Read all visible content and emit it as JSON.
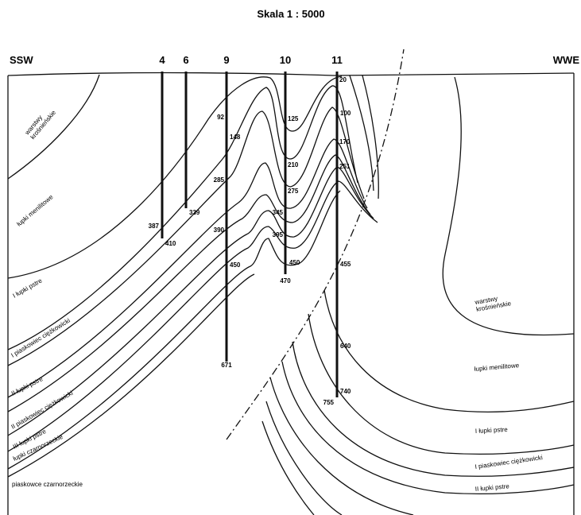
{
  "title": "Skala 1 : 5000",
  "directions": {
    "left": "SSW",
    "right": "WWE"
  },
  "wells": [
    {
      "label": "4",
      "depths": [
        387,
        410
      ]
    },
    {
      "label": "6",
      "depths": [
        339
      ]
    },
    {
      "label": "9",
      "depths": [
        92,
        148,
        285,
        390,
        450,
        671
      ]
    },
    {
      "label": "10",
      "depths": [
        125,
        210,
        275,
        345,
        395,
        450,
        470
      ]
    },
    {
      "label": "11",
      "depths": [
        20,
        100,
        170,
        251,
        455,
        640,
        740,
        755
      ]
    }
  ],
  "layers_left": [
    [
      "warstwy",
      "krośnieńskie"
    ],
    [
      "łupki menilitowe"
    ],
    [
      "I łupki pstre"
    ],
    [
      "I piaskowiec ciężkowicki"
    ],
    [
      "II łupki pstre"
    ],
    [
      "II piaskowiec ciężkowicki"
    ],
    [
      "III łupki pstre"
    ],
    [
      "łupki czarnorzeckie"
    ],
    [
      "piaskowce czarnorzeckie"
    ]
  ],
  "layers_right": [
    [
      "warstwy",
      "krośnieńskie"
    ],
    [
      "łupki menilitowe"
    ],
    [
      "I łupki pstre"
    ],
    [
      "I piaskowiec ciężkowicki"
    ],
    [
      "II łupki pstre"
    ]
  ]
}
